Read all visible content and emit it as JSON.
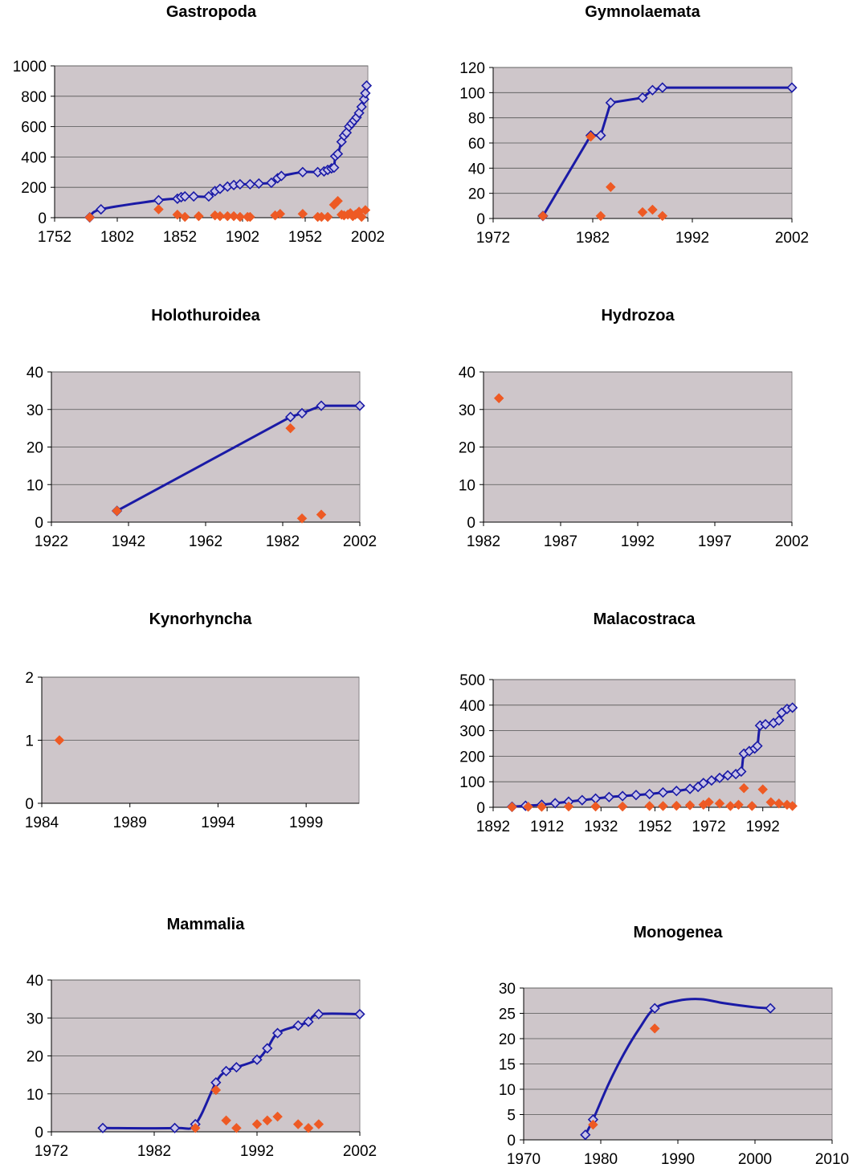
{
  "colors": {
    "plot_bg": "#cec6ca",
    "cumulative": "#1a1aa6",
    "annual": "#ee5a24",
    "gridline": "#555555"
  },
  "chart_data": [
    {
      "title": "Gastropoda",
      "type": "line",
      "xlim": [
        1752,
        2002
      ],
      "xticks": [
        1752,
        1802,
        1852,
        1902,
        1952,
        2002
      ],
      "ylim": [
        0,
        1000
      ],
      "yticks": [
        0,
        200,
        400,
        600,
        800,
        1000
      ],
      "legend": "none",
      "series": [
        {
          "role": "cumulative",
          "values": [
            [
              1780,
              2
            ],
            [
              1789,
              55
            ],
            [
              1835,
              115
            ],
            [
              1850,
              125
            ],
            [
              1853,
              135
            ],
            [
              1856,
              140
            ],
            [
              1863,
              140
            ],
            [
              1875,
              140
            ],
            [
              1880,
              175
            ],
            [
              1884,
              190
            ],
            [
              1890,
              205
            ],
            [
              1895,
              215
            ],
            [
              1900,
              220
            ],
            [
              1908,
              220
            ],
            [
              1915,
              225
            ],
            [
              1925,
              230
            ],
            [
              1930,
              260
            ],
            [
              1933,
              275
            ],
            [
              1950,
              300
            ],
            [
              1962,
              300
            ],
            [
              1967,
              305
            ],
            [
              1970,
              315
            ],
            [
              1973,
              325
            ],
            [
              1975,
              330
            ],
            [
              1976,
              405
            ],
            [
              1978,
              420
            ],
            [
              1981,
              500
            ],
            [
              1983,
              540
            ],
            [
              1985,
              560
            ],
            [
              1987,
              600
            ],
            [
              1989,
              620
            ],
            [
              1991,
              640
            ],
            [
              1993,
              660
            ],
            [
              1995,
              690
            ],
            [
              1997,
              730
            ],
            [
              1999,
              780
            ],
            [
              2000,
              820
            ],
            [
              2001,
              870
            ]
          ],
          "smooth": true
        },
        {
          "role": "annual",
          "values": [
            [
              1780,
              2
            ],
            [
              1835,
              55
            ],
            [
              1850,
              20
            ],
            [
              1856,
              5
            ],
            [
              1867,
              10
            ],
            [
              1880,
              15
            ],
            [
              1884,
              10
            ],
            [
              1890,
              10
            ],
            [
              1895,
              10
            ],
            [
              1900,
              5
            ],
            [
              1906,
              5
            ],
            [
              1908,
              5
            ],
            [
              1928,
              15
            ],
            [
              1932,
              25
            ],
            [
              1950,
              25
            ],
            [
              1962,
              5
            ],
            [
              1965,
              5
            ],
            [
              1970,
              5
            ],
            [
              1975,
              85
            ],
            [
              1978,
              110
            ],
            [
              1981,
              20
            ],
            [
              1983,
              15
            ],
            [
              1986,
              20
            ],
            [
              1988,
              30
            ],
            [
              1990,
              10
            ],
            [
              1992,
              20
            ],
            [
              1995,
              40
            ],
            [
              1997,
              5
            ],
            [
              2000,
              50
            ]
          ]
        }
      ]
    },
    {
      "title": "Gymnolaemata",
      "type": "line",
      "xlim": [
        1972,
        2002
      ],
      "xticks": [
        1972,
        1982,
        1992,
        2002
      ],
      "ylim": [
        0,
        120
      ],
      "yticks": [
        0,
        20,
        40,
        60,
        80,
        100,
        120
      ],
      "legend": "none",
      "series": [
        {
          "role": "cumulative",
          "values": [
            [
              1977,
              2
            ],
            [
              1981.8,
              66
            ],
            [
              1982.8,
              66
            ],
            [
              1983.8,
              92
            ],
            [
              1987,
              96
            ],
            [
              1988,
              102
            ],
            [
              1989,
              104
            ],
            [
              2002,
              104
            ]
          ]
        },
        {
          "role": "annual",
          "values": [
            [
              1977,
              2
            ],
            [
              1981.8,
              65
            ],
            [
              1982.8,
              2
            ],
            [
              1983.8,
              25
            ],
            [
              1987,
              5
            ],
            [
              1988,
              7
            ],
            [
              1989,
              2
            ]
          ]
        }
      ]
    },
    {
      "title": "Holothuroidea",
      "type": "line",
      "xlim": [
        1922,
        2002
      ],
      "xticks": [
        1922,
        1942,
        1962,
        1982,
        2002
      ],
      "ylim": [
        0,
        40
      ],
      "yticks": [
        0,
        10,
        20,
        30,
        40
      ],
      "legend": "none",
      "series": [
        {
          "role": "cumulative",
          "values": [
            [
              1939,
              3
            ],
            [
              1984,
              28
            ],
            [
              1987,
              29
            ],
            [
              1992,
              31
            ],
            [
              2002,
              31
            ]
          ]
        },
        {
          "role": "annual",
          "values": [
            [
              1939,
              3
            ],
            [
              1984,
              25
            ],
            [
              1987,
              1
            ],
            [
              1992,
              2
            ]
          ]
        }
      ]
    },
    {
      "title": "Hydrozoa",
      "type": "line",
      "xlim": [
        1982,
        2002
      ],
      "xticks": [
        1982,
        1987,
        1992,
        1997,
        2002
      ],
      "ylim": [
        0,
        40
      ],
      "yticks": [
        0,
        10,
        20,
        30,
        40
      ],
      "legend": "none",
      "series": [
        {
          "role": "annual",
          "values": [
            [
              1983,
              33
            ]
          ]
        }
      ]
    },
    {
      "title": "Kynorhyncha",
      "type": "line",
      "xlim": [
        1984,
        2002
      ],
      "xticks": [
        1984,
        1989,
        1994,
        1999
      ],
      "ylim": [
        0,
        2
      ],
      "yticks": [
        0,
        1,
        2
      ],
      "legend": "none",
      "series": [
        {
          "role": "annual",
          "values": [
            [
              1985,
              1
            ]
          ]
        }
      ]
    },
    {
      "title": "Malacostraca",
      "type": "line",
      "xlim": [
        1892,
        2004
      ],
      "xticks": [
        1892,
        1912,
        1932,
        1952,
        1972,
        1992
      ],
      "ylim": [
        0,
        500
      ],
      "yticks": [
        0,
        100,
        200,
        300,
        400,
        500
      ],
      "legend": "none",
      "series": [
        {
          "role": "cumulative",
          "values": [
            [
              1899,
              2
            ],
            [
              1904,
              6
            ],
            [
              1910,
              10
            ],
            [
              1915,
              16
            ],
            [
              1920,
              22
            ],
            [
              1925,
              28
            ],
            [
              1930,
              34
            ],
            [
              1935,
              40
            ],
            [
              1940,
              44
            ],
            [
              1945,
              48
            ],
            [
              1950,
              52
            ],
            [
              1955,
              58
            ],
            [
              1960,
              64
            ],
            [
              1965,
              72
            ],
            [
              1968,
              80
            ],
            [
              1970,
              95
            ],
            [
              1973,
              105
            ],
            [
              1976,
              115
            ],
            [
              1979,
              125
            ],
            [
              1982,
              130
            ],
            [
              1984,
              140
            ],
            [
              1985,
              210
            ],
            [
              1987,
              220
            ],
            [
              1989,
              230
            ],
            [
              1990,
              240
            ],
            [
              1991,
              320
            ],
            [
              1993,
              325
            ],
            [
              1996,
              330
            ],
            [
              1998,
              340
            ],
            [
              1999,
              370
            ],
            [
              2001,
              385
            ],
            [
              2003,
              390
            ]
          ],
          "smooth": true
        },
        {
          "role": "annual",
          "values": [
            [
              1899,
              1
            ],
            [
              1905,
              2
            ],
            [
              1910,
              2
            ],
            [
              1920,
              3
            ],
            [
              1930,
              3
            ],
            [
              1940,
              3
            ],
            [
              1950,
              5
            ],
            [
              1955,
              5
            ],
            [
              1960,
              6
            ],
            [
              1965,
              8
            ],
            [
              1970,
              10
            ],
            [
              1972,
              20
            ],
            [
              1976,
              15
            ],
            [
              1980,
              5
            ],
            [
              1983,
              10
            ],
            [
              1985,
              75
            ],
            [
              1988,
              5
            ],
            [
              1992,
              70
            ],
            [
              1995,
              20
            ],
            [
              1998,
              15
            ],
            [
              2001,
              10
            ],
            [
              2003,
              5
            ]
          ]
        }
      ]
    },
    {
      "title": "Mammalia",
      "type": "line",
      "xlim": [
        1972,
        2002
      ],
      "xticks": [
        1972,
        1982,
        1992,
        2002
      ],
      "ylim": [
        0,
        40
      ],
      "yticks": [
        0,
        10,
        20,
        30,
        40
      ],
      "legend": "none",
      "series": [
        {
          "role": "cumulative",
          "values": [
            [
              1977,
              1
            ],
            [
              1984,
              1
            ],
            [
              1986,
              2
            ],
            [
              1988,
              13
            ],
            [
              1989,
              16
            ],
            [
              1990,
              17
            ],
            [
              1992,
              19
            ],
            [
              1993,
              22
            ],
            [
              1994,
              26
            ],
            [
              1996,
              28
            ],
            [
              1997,
              29
            ],
            [
              1998,
              31
            ],
            [
              2002,
              31
            ]
          ],
          "smooth": true
        },
        {
          "role": "annual",
          "values": [
            [
              1986,
              1
            ],
            [
              1988,
              11
            ],
            [
              1989,
              3
            ],
            [
              1990,
              1
            ],
            [
              1992,
              2
            ],
            [
              1993,
              3
            ],
            [
              1994,
              4
            ],
            [
              1996,
              2
            ],
            [
              1997,
              1
            ],
            [
              1998,
              2
            ]
          ]
        }
      ]
    },
    {
      "title": "Monogenea",
      "type": "line",
      "xlim": [
        1970,
        2010
      ],
      "xticks": [
        1970,
        1980,
        1990,
        2000,
        2010
      ],
      "ylim": [
        0,
        30
      ],
      "yticks": [
        0,
        5,
        10,
        15,
        20,
        25,
        30
      ],
      "legend": "none",
      "series": [
        {
          "role": "cumulative",
          "values": [
            [
              1978,
              1
            ],
            [
              1979,
              4
            ],
            [
              1987,
              26
            ],
            [
              2002,
              26
            ]
          ],
          "curve_through": [
            [
              1978,
              1
            ],
            [
              1979,
              4
            ],
            [
              1981,
              11
            ],
            [
              1983,
              17
            ],
            [
              1985,
              22
            ],
            [
              1987,
              26
            ],
            [
              1990,
              27.5
            ],
            [
              1993,
              27.8
            ],
            [
              1996,
              27
            ],
            [
              2000,
              26.2
            ],
            [
              2002,
              26
            ]
          ]
        },
        {
          "role": "annual",
          "values": [
            [
              1979,
              3
            ],
            [
              1987,
              22
            ]
          ]
        }
      ]
    }
  ]
}
